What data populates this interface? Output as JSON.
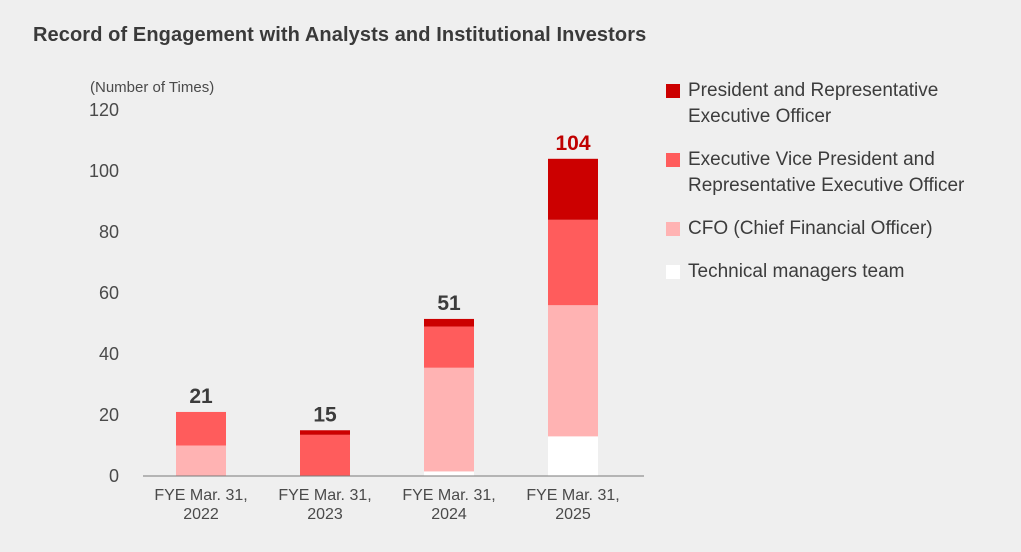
{
  "title": "Record of Engagement with Analysts and Institutional Investors",
  "chart_data": {
    "type": "bar",
    "stacked": true,
    "title": "Record of Engagement with Analysts and Institutional Investors",
    "ylabel": "(Number of Times)",
    "ylim": [
      0,
      120
    ],
    "yticks": [
      0,
      20,
      40,
      60,
      80,
      100,
      120
    ],
    "categories": [
      [
        "FYE Mar. 31,",
        "2022"
      ],
      [
        "FYE Mar. 31,",
        "2023"
      ],
      [
        "FYE Mar. 31,",
        "2024"
      ],
      [
        "FYE Mar. 31,",
        "2025"
      ]
    ],
    "totals": [
      21,
      15,
      51,
      104
    ],
    "total_label_colors": [
      "#3c3c3c",
      "#3c3c3c",
      "#3c3c3c",
      "#c00000"
    ],
    "series": [
      {
        "name": "Technical managers team",
        "color": "#ffffff",
        "values": [
          0,
          0,
          1.5,
          13
        ]
      },
      {
        "name": "CFO (Chief Financial Officer)",
        "color": "#ffb3b3",
        "values": [
          10,
          0,
          34,
          43
        ]
      },
      {
        "name": "Executive Vice President and Representative Executive Officer",
        "color": "#ff5c5c",
        "values": [
          11,
          13.5,
          13.5,
          28
        ]
      },
      {
        "name": "President and Representative Executive Officer",
        "color": "#cc0000",
        "values": [
          0,
          1.5,
          2.5,
          20
        ]
      }
    ],
    "legend": [
      {
        "lines": [
          "President and Representative",
          "Executive Officer"
        ],
        "color": "#cc0000"
      },
      {
        "lines": [
          "Executive Vice President and",
          "Representative Executive Officer"
        ],
        "color": "#ff5c5c"
      },
      {
        "lines": [
          "CFO (Chief Financial Officer)"
        ],
        "color": "#ffb3b3"
      },
      {
        "lines": [
          "Technical managers team"
        ],
        "color": "#ffffff"
      }
    ]
  }
}
